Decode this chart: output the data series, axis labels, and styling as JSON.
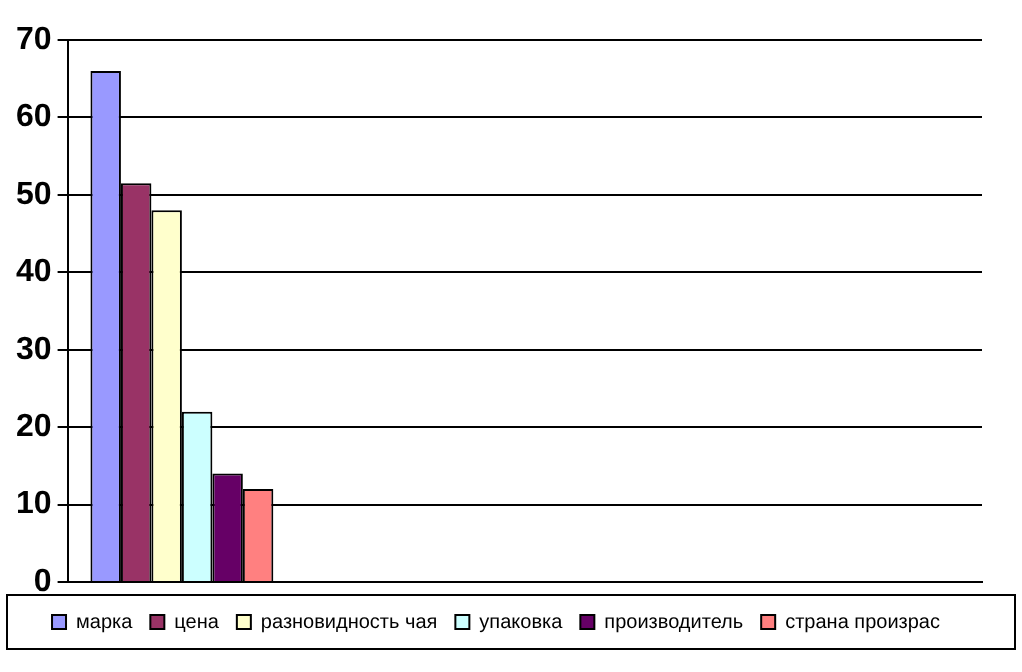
{
  "chart_data": {
    "type": "bar",
    "categories": [
      null,
      null,
      null,
      null
    ],
    "series": [
      {
        "name": "марка",
        "color": "#9999ff",
        "values": [
          66,
          null,
          null,
          null
        ]
      },
      {
        "name": "цена",
        "color": "#993366",
        "values": [
          51.5,
          null,
          null,
          null
        ]
      },
      {
        "name": "разновидность чая",
        "color": "#ffffcc",
        "values": [
          48,
          null,
          null,
          null
        ]
      },
      {
        "name": "упаковка",
        "color": "#ccffff",
        "values": [
          22,
          null,
          null,
          null
        ]
      },
      {
        "name": "производитель",
        "color": "#660066",
        "values": [
          14,
          null,
          null,
          null
        ]
      },
      {
        "name": "страна произрас",
        "color": "#ff8080",
        "values": [
          12,
          null,
          null,
          null
        ]
      }
    ],
    "ylim": [
      0,
      70
    ],
    "yticks": [
      0,
      10,
      20,
      30,
      40,
      50,
      60,
      70
    ],
    "grid": "y",
    "legend": "bottom"
  }
}
